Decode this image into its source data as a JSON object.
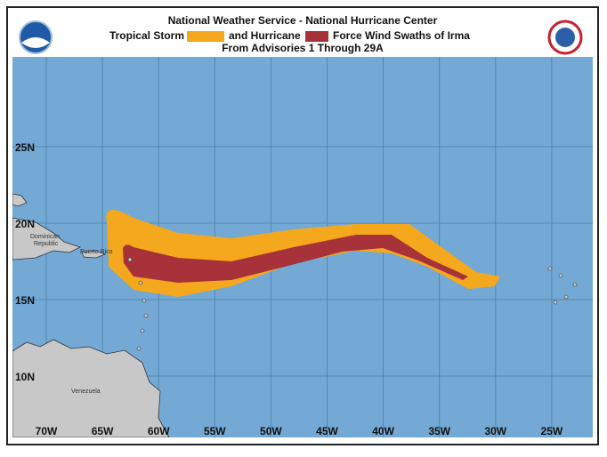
{
  "header": {
    "title": "National Weather Service - National Hurricane Center",
    "legend_storm": "Tropical Storm",
    "legend_hurricane": "and Hurricane",
    "legend_suffix": "Force Wind Swaths of Irma",
    "subtitle": "From Advisories 1 Through 29A"
  },
  "map": {
    "lon_labels": [
      "70W",
      "65W",
      "60W",
      "55W",
      "50W",
      "45W",
      "40W",
      "35W",
      "30W",
      "25W"
    ],
    "lat_labels": [
      "25N",
      "20N",
      "15N",
      "10N"
    ],
    "places": {
      "dominican": "Dominican",
      "republic": "Republic",
      "puerto_rico": "Puerto Rico",
      "venezuela": "Venezuela"
    }
  }
}
